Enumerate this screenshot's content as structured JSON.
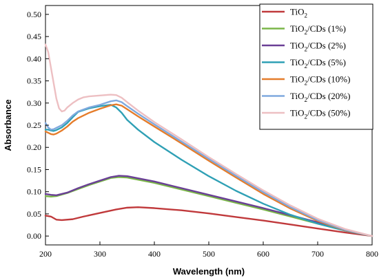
{
  "chart_data": {
    "type": "line",
    "title": "",
    "xlabel": "Wavelength (nm)",
    "ylabel": "Absorbance",
    "xlim": [
      200,
      800
    ],
    "ylim": [
      -0.02,
      0.52
    ],
    "xticks": [
      200,
      300,
      400,
      500,
      600,
      700,
      800
    ],
    "xtick_labels": [
      "200",
      "300",
      "400",
      "500",
      "600",
      "700",
      "800"
    ],
    "yticks": [
      0.0,
      0.05,
      0.1,
      0.15,
      0.2,
      0.25,
      0.3,
      0.35,
      0.4,
      0.45,
      0.5
    ],
    "ytick_labels": [
      "0.00",
      "0.05",
      "0.10",
      "0.15",
      "0.20",
      "0.25",
      "0.30",
      "0.35",
      "0.40",
      "0.45",
      "0.50"
    ],
    "grid": false,
    "legend_position": "top-right",
    "series": [
      {
        "name": "TiO2",
        "label_base": "TiO",
        "label_sub": "2",
        "label_rest": "",
        "color": "#C0393B",
        "x": [
          200,
          210,
          220,
          230,
          250,
          270,
          300,
          330,
          350,
          370,
          400,
          450,
          500,
          550,
          600,
          650,
          700,
          750,
          800
        ],
        "y": [
          0.046,
          0.044,
          0.037,
          0.036,
          0.038,
          0.044,
          0.052,
          0.06,
          0.064,
          0.065,
          0.063,
          0.058,
          0.051,
          0.043,
          0.035,
          0.026,
          0.017,
          0.008,
          0.0
        ]
      },
      {
        "name": "TiO2/CDs (1%)",
        "label_base": "TiO",
        "label_sub": "2",
        "label_rest": "/CDs (1%)",
        "color": "#7AB648",
        "x": [
          200,
          210,
          220,
          240,
          260,
          280,
          300,
          320,
          335,
          350,
          400,
          450,
          500,
          550,
          600,
          650,
          700,
          750,
          800
        ],
        "y": [
          0.09,
          0.089,
          0.09,
          0.097,
          0.106,
          0.115,
          0.123,
          0.131,
          0.133,
          0.132,
          0.12,
          0.105,
          0.09,
          0.075,
          0.06,
          0.044,
          0.028,
          0.013,
          0.0
        ]
      },
      {
        "name": "TiO2/CDs (2%)",
        "label_base": "TiO",
        "label_sub": "2",
        "label_rest": "/CDs (2%)",
        "color": "#6A3F96",
        "x": [
          200,
          210,
          220,
          240,
          260,
          280,
          300,
          320,
          335,
          350,
          400,
          450,
          500,
          550,
          600,
          650,
          700,
          750,
          800
        ],
        "y": [
          0.095,
          0.093,
          0.092,
          0.098,
          0.108,
          0.117,
          0.125,
          0.133,
          0.136,
          0.135,
          0.123,
          0.108,
          0.093,
          0.078,
          0.063,
          0.047,
          0.031,
          0.015,
          0.0
        ]
      },
      {
        "name": "TiO2/CDs (5%)",
        "label_base": "TiO",
        "label_sub": "2",
        "label_rest": "/CDs (5%)",
        "color": "#2FA0B5",
        "x": [
          200,
          205,
          210,
          215,
          220,
          230,
          240,
          250,
          260,
          280,
          300,
          320,
          330,
          340,
          350,
          370,
          400,
          450,
          500,
          550,
          600,
          650,
          700,
          750,
          800
        ],
        "y": [
          0.24,
          0.24,
          0.238,
          0.237,
          0.239,
          0.245,
          0.255,
          0.268,
          0.28,
          0.288,
          0.293,
          0.296,
          0.29,
          0.278,
          0.262,
          0.24,
          0.212,
          0.172,
          0.135,
          0.102,
          0.073,
          0.048,
          0.028,
          0.012,
          0.0
        ]
      },
      {
        "name": "TiO2/CDs (10%)",
        "label_base": "TiO",
        "label_sub": "2",
        "label_rest": "/CDs (10%)",
        "color": "#E57C2A",
        "x": [
          200,
          205,
          210,
          215,
          220,
          230,
          240,
          250,
          260,
          280,
          300,
          320,
          330,
          340,
          350,
          370,
          400,
          450,
          500,
          550,
          600,
          650,
          700,
          750,
          800
        ],
        "y": [
          0.236,
          0.233,
          0.23,
          0.229,
          0.231,
          0.238,
          0.247,
          0.258,
          0.266,
          0.278,
          0.287,
          0.295,
          0.297,
          0.294,
          0.286,
          0.27,
          0.247,
          0.209,
          0.17,
          0.132,
          0.095,
          0.062,
          0.034,
          0.013,
          0.0
        ]
      },
      {
        "name": "TiO2/CDs (20%)",
        "label_base": "TiO",
        "label_sub": "2",
        "label_rest": "/CDs (20%)",
        "color": "#7FA9DE",
        "x": [
          200,
          205,
          210,
          215,
          220,
          230,
          240,
          250,
          260,
          280,
          300,
          320,
          330,
          340,
          350,
          370,
          400,
          450,
          500,
          550,
          600,
          650,
          700,
          750,
          800
        ],
        "y": [
          0.255,
          0.245,
          0.24,
          0.241,
          0.244,
          0.25,
          0.26,
          0.272,
          0.281,
          0.29,
          0.296,
          0.304,
          0.306,
          0.302,
          0.293,
          0.276,
          0.252,
          0.213,
          0.174,
          0.136,
          0.099,
          0.065,
          0.036,
          0.014,
          0.0
        ]
      },
      {
        "name": "TiO2/CDs (50%)",
        "label_base": "TiO",
        "label_sub": "2",
        "label_rest": "/CDs (50%)",
        "color": "#EDBFC2",
        "x": [
          200,
          205,
          210,
          215,
          220,
          225,
          230,
          235,
          240,
          250,
          260,
          270,
          280,
          300,
          320,
          330,
          340,
          350,
          370,
          400,
          450,
          500,
          550,
          600,
          650,
          700,
          750,
          800
        ],
        "y": [
          0.432,
          0.415,
          0.38,
          0.345,
          0.31,
          0.288,
          0.281,
          0.283,
          0.29,
          0.3,
          0.308,
          0.313,
          0.315,
          0.317,
          0.319,
          0.318,
          0.312,
          0.302,
          0.283,
          0.257,
          0.218,
          0.178,
          0.14,
          0.103,
          0.069,
          0.039,
          0.016,
          0.0
        ]
      }
    ]
  }
}
